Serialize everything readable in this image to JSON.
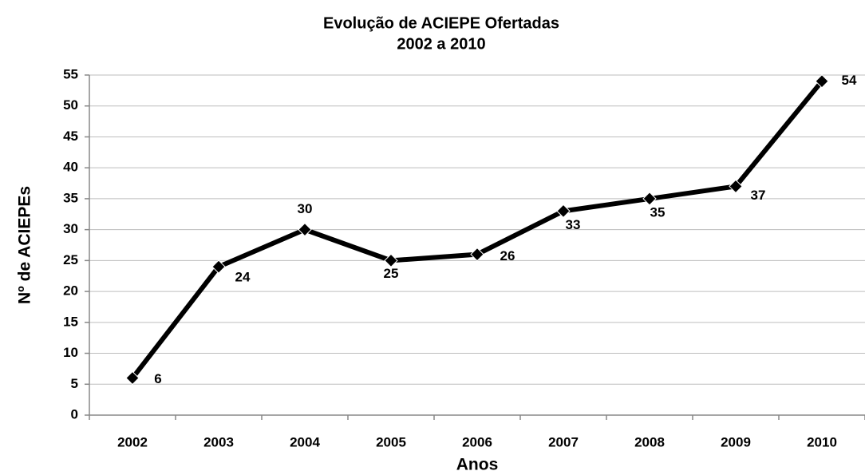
{
  "chart_data": {
    "type": "line",
    "title": "Evolução de ACIEPE Ofertadas",
    "subtitle": "2002 a 2010",
    "x_label": "Anos",
    "y_label": "Nº de ACIEPEs",
    "categories": [
      "2002",
      "2003",
      "2004",
      "2005",
      "2006",
      "2007",
      "2008",
      "2009",
      "2010"
    ],
    "values": [
      6,
      24,
      30,
      25,
      26,
      33,
      35,
      37,
      54
    ],
    "color": "#000000",
    "ylim": [
      0,
      55
    ],
    "yticks": [
      0,
      5,
      10,
      15,
      20,
      25,
      30,
      35,
      40,
      45,
      50,
      55
    ],
    "grid": true
  }
}
